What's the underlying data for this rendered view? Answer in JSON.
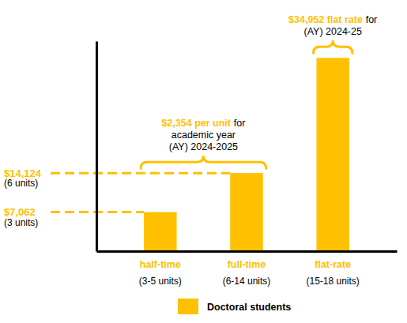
{
  "chart_data": {
    "type": "bar",
    "categories": [
      "half-time",
      "full-time",
      "flat-rate"
    ],
    "category_notes": [
      "(3-5 units)",
      "(6-14 units)",
      "(15-18 units)"
    ],
    "series": [
      {
        "name": "Doctoral students",
        "color": "#FFC000",
        "values": [
          7062,
          14124,
          34952
        ]
      }
    ],
    "ylim": [
      0,
      38000
    ],
    "yticks": [
      {
        "value": 7062,
        "label": "$7,062"
      },
      {
        "value": 14124,
        "label": "$14,124"
      }
    ],
    "ytick_notes": [
      "(3 units)",
      "(6 units)"
    ],
    "grid": true,
    "legend": "bottom",
    "annotations": [
      {
        "highlight": "$2,354 per unit",
        "text": "for",
        "lines": [
          "academic year",
          "(AY) 2024-2025"
        ]
      },
      {
        "highlight": "$34,952 flat rate",
        "text": "for",
        "lines": [
          "(AY) 2024-25"
        ]
      }
    ]
  }
}
